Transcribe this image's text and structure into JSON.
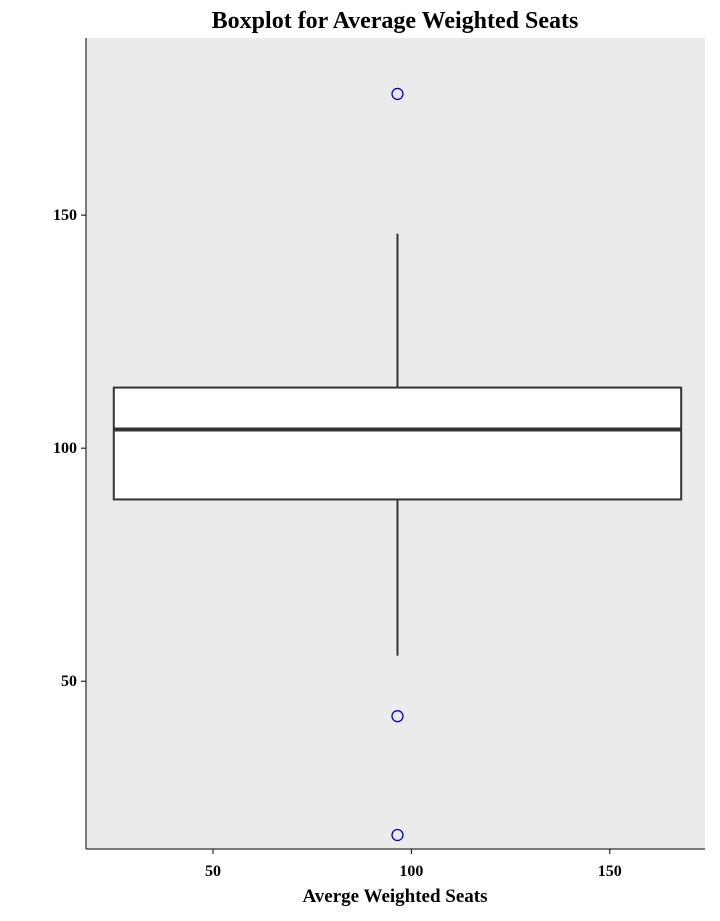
{
  "chart_data": {
    "type": "boxplot",
    "title": "Boxplot for Average Weighted Seats",
    "xlabel": "Averge Weighted Seats",
    "ylabel": "",
    "xlim": [
      18,
      174
    ],
    "ylim": [
      14,
      188
    ],
    "x_ticks": [
      50,
      100,
      150
    ],
    "y_ticks": [
      50,
      100,
      150
    ],
    "grid": false,
    "colors": {
      "panel": "#ebebeb",
      "box_fill": "#ffffff",
      "box_line": "#333333",
      "outlier": "#0000cc"
    },
    "box": {
      "x_center": 96.5,
      "x_left": 25,
      "x_right": 168,
      "lower_whisker": 55.5,
      "q1": 89,
      "median": 104,
      "q3": 113,
      "upper_whisker": 146
    },
    "outliers": [
      176,
      42.5,
      17
    ]
  }
}
